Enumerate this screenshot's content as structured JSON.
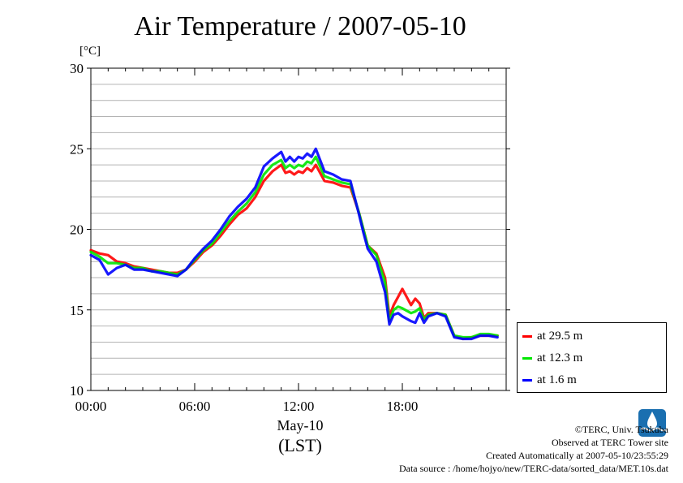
{
  "chart_data": {
    "type": "line",
    "title": "Air Temperature / 2007-05-10",
    "unit_label": "[°C]",
    "ylim": [
      10,
      30
    ],
    "yticks": [
      "10",
      "15",
      "20",
      "25",
      "30"
    ],
    "xlim": [
      "00:00",
      "24:00"
    ],
    "xticks": [
      "00:00",
      "06:00",
      "12:00",
      "18:00"
    ],
    "xlabel_date": "May-10",
    "xlabel_zone": "(LST)",
    "grid": true,
    "legend_position": "right",
    "series": [
      {
        "name": "at 29.5 m",
        "color": "#ff0000",
        "x": [
          0,
          0.5,
          1,
          1.5,
          2,
          2.5,
          3,
          3.5,
          4,
          4.5,
          5,
          5.5,
          6,
          6.5,
          7,
          7.5,
          8,
          8.5,
          9,
          9.5,
          10,
          10.5,
          11,
          11.25,
          11.5,
          11.75,
          12,
          12.25,
          12.5,
          12.75,
          13,
          13.5,
          14,
          14.5,
          15,
          15.5,
          15.75,
          16,
          16.5,
          17,
          17.25,
          17.5,
          17.75,
          18,
          18.5,
          18.75,
          19,
          19.25,
          19.5,
          20,
          20.5,
          21,
          21.5,
          22,
          22.5,
          23,
          23.5
        ],
        "values": [
          18.7,
          18.5,
          18.4,
          18.0,
          17.9,
          17.7,
          17.6,
          17.5,
          17.4,
          17.3,
          17.3,
          17.5,
          18.0,
          18.6,
          19.0,
          19.6,
          20.3,
          20.9,
          21.3,
          22.0,
          23.0,
          23.6,
          24.0,
          23.5,
          23.6,
          23.4,
          23.6,
          23.5,
          23.8,
          23.6,
          24.0,
          23.0,
          22.9,
          22.7,
          22.6,
          21.0,
          20.0,
          19.0,
          18.5,
          17.0,
          14.6,
          15.3,
          15.8,
          16.3,
          15.3,
          15.7,
          15.4,
          14.5,
          14.8,
          14.8,
          14.7,
          13.4,
          13.2,
          13.3,
          13.4,
          13.4,
          13.4
        ]
      },
      {
        "name": "at 12.3 m",
        "color": "#00e600",
        "x": [
          0,
          0.5,
          1,
          1.5,
          2,
          2.5,
          3,
          3.5,
          4,
          4.5,
          5,
          5.5,
          6,
          6.5,
          7,
          7.5,
          8,
          8.5,
          9,
          9.5,
          10,
          10.5,
          11,
          11.25,
          11.5,
          11.75,
          12,
          12.25,
          12.5,
          12.75,
          13,
          13.5,
          14,
          14.5,
          15,
          15.5,
          15.75,
          16,
          16.5,
          17,
          17.25,
          17.5,
          17.75,
          18,
          18.5,
          18.75,
          19,
          19.25,
          19.5,
          20,
          20.5,
          21,
          21.5,
          22,
          22.5,
          23,
          23.5
        ],
        "values": [
          18.6,
          18.3,
          17.9,
          17.9,
          17.8,
          17.6,
          17.6,
          17.4,
          17.4,
          17.3,
          17.2,
          17.5,
          18.1,
          18.7,
          19.1,
          19.8,
          20.5,
          21.1,
          21.6,
          22.3,
          23.4,
          24.0,
          24.3,
          23.8,
          24.0,
          23.8,
          24.0,
          23.9,
          24.2,
          24.1,
          24.5,
          23.3,
          23.1,
          22.9,
          22.8,
          21.0,
          20.0,
          19.0,
          18.4,
          16.7,
          14.3,
          15.0,
          15.2,
          15.1,
          14.8,
          14.9,
          15.1,
          14.4,
          14.7,
          14.8,
          14.7,
          13.4,
          13.3,
          13.3,
          13.5,
          13.5,
          13.4
        ]
      },
      {
        "name": "at 1.6 m",
        "color": "#0000ff",
        "x": [
          0,
          0.5,
          1,
          1.5,
          2,
          2.5,
          3,
          3.5,
          4,
          4.5,
          5,
          5.5,
          6,
          6.5,
          7,
          7.5,
          8,
          8.5,
          9,
          9.5,
          10,
          10.5,
          11,
          11.25,
          11.5,
          11.75,
          12,
          12.25,
          12.5,
          12.75,
          13,
          13.5,
          14,
          14.5,
          15,
          15.5,
          15.75,
          16,
          16.5,
          17,
          17.25,
          17.5,
          17.75,
          18,
          18.5,
          18.75,
          19,
          19.25,
          19.5,
          20,
          20.5,
          21,
          21.5,
          22,
          22.5,
          23,
          23.5
        ],
        "values": [
          18.4,
          18.1,
          17.2,
          17.6,
          17.8,
          17.5,
          17.5,
          17.4,
          17.3,
          17.2,
          17.1,
          17.5,
          18.2,
          18.8,
          19.3,
          20.0,
          20.8,
          21.4,
          21.9,
          22.6,
          23.9,
          24.4,
          24.8,
          24.2,
          24.5,
          24.2,
          24.5,
          24.4,
          24.7,
          24.5,
          25.0,
          23.6,
          23.4,
          23.1,
          23.0,
          20.9,
          19.8,
          18.8,
          18.0,
          16.1,
          14.1,
          14.7,
          14.8,
          14.6,
          14.3,
          14.2,
          14.8,
          14.2,
          14.6,
          14.8,
          14.6,
          13.3,
          13.2,
          13.2,
          13.4,
          13.4,
          13.3
        ]
      }
    ]
  },
  "credits": {
    "copyright": "©TERC, Univ. Tsukuba",
    "observed": "Observed at TERC Tower site",
    "created": "Created Automatically at 2007-05-10/23:55:29",
    "source": "Data source : /home/hojyo/new/TERC-data/sorted_data/MET.10s.dat",
    "logo_icon": "terc-logo-icon"
  }
}
